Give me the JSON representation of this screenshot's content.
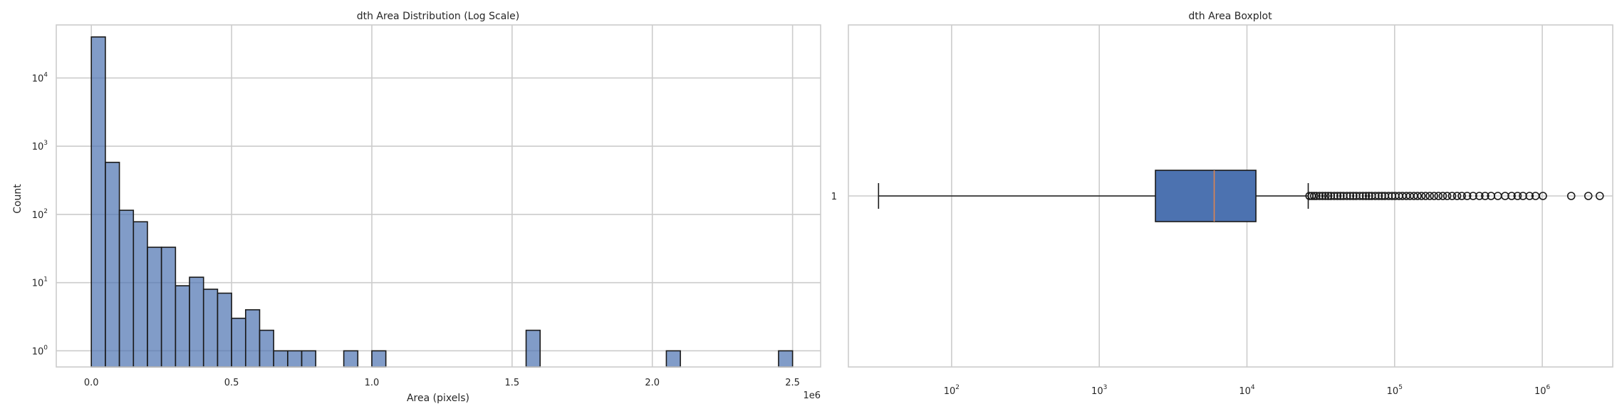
{
  "chart_data": [
    {
      "type": "bar",
      "subtype": "histogram",
      "title": "dth Area Distribution (Log Scale)",
      "xlabel": "Area (pixels)",
      "ylabel": "Count",
      "x_offset_label": "1e6",
      "xlim": [
        -0.125,
        2.6
      ],
      "x_scale": "linear",
      "ylim": [
        0.58,
        60000
      ],
      "y_scale": "log",
      "grid": true,
      "bar_color": "#4c72b0",
      "x_ticks": [
        0,
        0.5,
        1.0,
        1.5,
        2.0,
        2.5
      ],
      "x_tick_labels": [
        "0.0",
        "0.5",
        "1.0",
        "1.5",
        "2.0",
        "2.5"
      ],
      "y_ticks": [
        1,
        10,
        100,
        1000,
        10000
      ],
      "y_tick_labels": [
        {
          "base": "10",
          "exp": "0"
        },
        {
          "base": "10",
          "exp": "1"
        },
        {
          "base": "10",
          "exp": "2"
        },
        {
          "base": "10",
          "exp": "3"
        },
        {
          "base": "10",
          "exp": "4"
        }
      ],
      "bin_width": 0.05,
      "bin_start": 0,
      "counts": [
        40000,
        580,
        115,
        78,
        33,
        33,
        9,
        12,
        8,
        7,
        3,
        4,
        2,
        1,
        1,
        1,
        0,
        0,
        1,
        0,
        1,
        0,
        0,
        0,
        0,
        0,
        0,
        0,
        0,
        0,
        0,
        2,
        0,
        0,
        0,
        0,
        0,
        0,
        0,
        0,
        0,
        1,
        0,
        0,
        0,
        0,
        0,
        0,
        0,
        1
      ]
    },
    {
      "type": "boxplot",
      "title": "dth Area Boxplot",
      "orientation": "horizontal",
      "x_scale": "log",
      "xlim": [
        20,
        3000000
      ],
      "grid": true,
      "box_color": "#4c72b0",
      "median_color": "#dd8452",
      "category_label": "1",
      "x_ticks": [
        100,
        1000,
        10000,
        100000,
        1000000
      ],
      "x_tick_labels": [
        {
          "base": "10",
          "exp": "2"
        },
        {
          "base": "10",
          "exp": "3"
        },
        {
          "base": "10",
          "exp": "4"
        },
        {
          "base": "10",
          "exp": "5"
        },
        {
          "base": "10",
          "exp": "6"
        }
      ],
      "whisker_low": 32,
      "q1": 2400,
      "median": 6000,
      "q3": 11500,
      "whisker_high": 26000,
      "outliers": [
        26500,
        27500,
        28500,
        29500,
        31000,
        32500,
        34000,
        35500,
        37000,
        39000,
        41000,
        43000,
        45000,
        47500,
        50000,
        52500,
        55000,
        58000,
        61000,
        64000,
        67000,
        70000,
        74000,
        78000,
        82000,
        86000,
        91000,
        96000,
        101000,
        107000,
        113000,
        120000,
        127000,
        135000,
        143000,
        152000,
        162000,
        173000,
        185000,
        198000,
        212000,
        227000,
        245000,
        265000,
        285000,
        310000,
        340000,
        375000,
        410000,
        450000,
        500000,
        560000,
        620000,
        680000,
        740000,
        820000,
        900000,
        1010000,
        1570000,
        2050000,
        2450000
      ]
    }
  ]
}
